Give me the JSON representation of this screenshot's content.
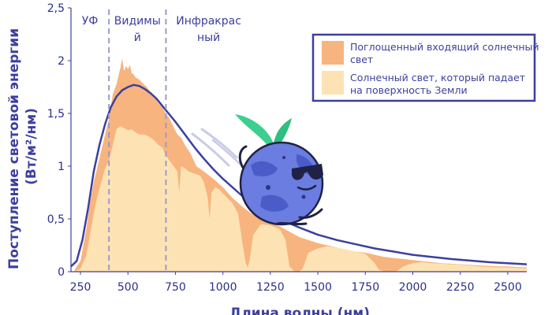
{
  "chart_data": {
    "type": "area",
    "title": "",
    "xlabel": "Длина волны (нм)",
    "ylabel_line1": "Поступление световой энергии",
    "ylabel_line2": "(Вт/м²/нм)",
    "xlim": [
      200,
      2600
    ],
    "ylim": [
      0,
      2.5
    ],
    "x_ticks": [
      250,
      500,
      750,
      1000,
      1250,
      1500,
      1750,
      2000,
      2250,
      2500
    ],
    "y_ticks": [
      {
        "value": 0,
        "label": "0"
      },
      {
        "value": 0.5,
        "label": "0,5"
      },
      {
        "value": 1,
        "label": "1"
      },
      {
        "value": 1.5,
        "label": "1,5"
      },
      {
        "value": 2,
        "label": "2"
      },
      {
        "value": 2.5,
        "label": "2,5"
      }
    ],
    "regions": [
      {
        "label_lines": [
          "УФ"
        ],
        "x_range": [
          200,
          400
        ]
      },
      {
        "label_lines": [
          "Видимы",
          "й"
        ],
        "x_range": [
          400,
          700
        ]
      },
      {
        "label_lines": [
          "Инфракрас",
          "ный"
        ],
        "x_range": [
          700,
          1150
        ]
      }
    ],
    "region_boundaries": [
      400,
      700
    ],
    "legend": {
      "placement": "top-right",
      "items": [
        {
          "label_lines": [
            "Поглощенный входящий солнечный",
            "свет"
          ],
          "color": "#f8b47e"
        },
        {
          "label_lines": [
            "Солнечный свет, который падает",
            "на поверхность Земли"
          ],
          "color": "#fde3b4"
        }
      ]
    },
    "series": [
      {
        "kind": "area",
        "color": "#f8b47e",
        "x": [
          220,
          250,
          280,
          300,
          320,
          340,
          360,
          380,
          400,
          420,
          440,
          460,
          470,
          480,
          490,
          500,
          510,
          520,
          530,
          540,
          560,
          580,
          600,
          620,
          640,
          660,
          680,
          700,
          720,
          740,
          760,
          780,
          800,
          830,
          860,
          900,
          950,
          1000,
          1050,
          1100,
          1150,
          1200,
          1250,
          1300,
          1350,
          1400,
          1450,
          1500,
          1550,
          1600,
          1650,
          1700,
          1750,
          1800,
          1850,
          1900,
          1950,
          2000,
          2050,
          2100,
          2150,
          2200,
          2250,
          2300,
          2350,
          2400,
          2450,
          2500,
          2550,
          2600
        ],
        "y": [
          0.02,
          0.1,
          0.4,
          0.65,
          0.85,
          1.0,
          1.15,
          1.3,
          1.45,
          1.68,
          1.78,
          1.93,
          2.02,
          1.9,
          1.95,
          1.92,
          1.96,
          1.88,
          1.87,
          1.84,
          1.82,
          1.78,
          1.75,
          1.7,
          1.65,
          1.6,
          1.56,
          1.5,
          1.45,
          1.37,
          1.3,
          1.27,
          1.2,
          1.12,
          1.0,
          0.95,
          0.88,
          0.8,
          0.7,
          0.62,
          0.55,
          0.52,
          0.46,
          0.43,
          0.38,
          0.33,
          0.3,
          0.27,
          0.25,
          0.23,
          0.2,
          0.19,
          0.18,
          0.16,
          0.14,
          0.13,
          0.12,
          0.11,
          0.1,
          0.09,
          0.08,
          0.075,
          0.07,
          0.065,
          0.06,
          0.055,
          0.05,
          0.05,
          0.045,
          0.04
        ]
      },
      {
        "kind": "area",
        "color": "#fde3b4",
        "x": [
          220,
          250,
          280,
          300,
          320,
          340,
          360,
          380,
          400,
          420,
          440,
          460,
          480,
          500,
          520,
          540,
          560,
          580,
          600,
          620,
          640,
          660,
          680,
          700,
          720,
          740,
          760,
          770,
          780,
          800,
          820,
          850,
          880,
          900,
          920,
          930,
          940,
          960,
          980,
          1000,
          1050,
          1080,
          1100,
          1120,
          1130,
          1140,
          1160,
          1200,
          1250,
          1300,
          1330,
          1350,
          1380,
          1400,
          1420,
          1450,
          1500,
          1550,
          1600,
          1650,
          1700,
          1750,
          1800,
          1820,
          1850,
          1900,
          1920,
          1950,
          2000,
          2050,
          2100,
          2150,
          2200,
          2250,
          2300,
          2350,
          2400,
          2450,
          2500,
          2550,
          2600
        ],
        "y": [
          0,
          0.03,
          0.15,
          0.35,
          0.55,
          0.72,
          0.85,
          0.98,
          1.05,
          1.2,
          1.35,
          1.38,
          1.36,
          1.34,
          1.35,
          1.32,
          1.3,
          1.3,
          1.29,
          1.27,
          1.24,
          1.2,
          1.18,
          1.1,
          1.05,
          1.0,
          0.95,
          0.75,
          1.0,
          0.98,
          0.95,
          0.93,
          0.91,
          0.85,
          0.7,
          0.5,
          0.75,
          0.8,
          0.78,
          0.74,
          0.65,
          0.55,
          0.3,
          0.08,
          0.04,
          0.1,
          0.35,
          0.45,
          0.44,
          0.4,
          0.3,
          0.05,
          0.0,
          0.0,
          0.03,
          0.18,
          0.22,
          0.24,
          0.23,
          0.21,
          0.19,
          0.17,
          0.08,
          0.02,
          0.0,
          0.0,
          0.01,
          0.05,
          0.08,
          0.09,
          0.08,
          0.075,
          0.07,
          0.065,
          0.06,
          0.05,
          0.045,
          0.04,
          0.04,
          0.035,
          0.03
        ]
      },
      {
        "kind": "line",
        "color": "#3d3f9e",
        "x": [
          200,
          230,
          260,
          290,
          320,
          350,
          380,
          410,
          440,
          470,
          500,
          530,
          560,
          590,
          620,
          650,
          700,
          750,
          800,
          850,
          900,
          950,
          1000,
          1100,
          1200,
          1300,
          1400,
          1500,
          1600,
          1700,
          1800,
          1900,
          2000,
          2100,
          2200,
          2300,
          2400,
          2500,
          2600
        ],
        "y": [
          0.05,
          0.1,
          0.3,
          0.6,
          0.95,
          1.2,
          1.4,
          1.56,
          1.66,
          1.72,
          1.75,
          1.77,
          1.76,
          1.73,
          1.69,
          1.64,
          1.53,
          1.42,
          1.3,
          1.18,
          1.07,
          0.97,
          0.88,
          0.72,
          0.6,
          0.5,
          0.42,
          0.35,
          0.3,
          0.26,
          0.22,
          0.19,
          0.16,
          0.14,
          0.12,
          0.105,
          0.09,
          0.08,
          0.07
        ]
      }
    ]
  },
  "colors": {
    "axis": "#3d3f9e",
    "divider": "#9a9cc9",
    "legend_border": "#3d3f9e"
  },
  "illustration": "earth-mascot-with-sunglasses"
}
